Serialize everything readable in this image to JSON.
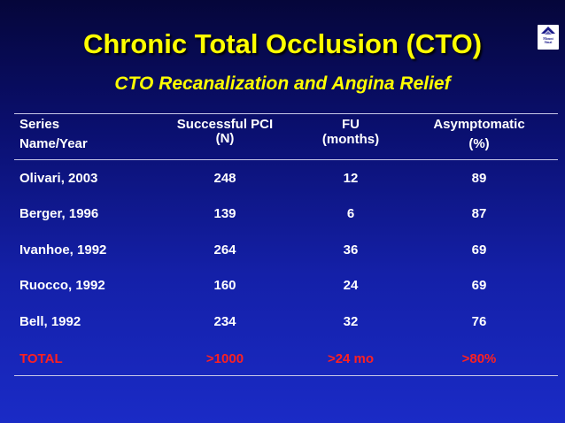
{
  "slide": {
    "title": "Chronic Total Occlusion (CTO)",
    "subtitle": "CTO Recanalization and Angina Relief",
    "logo": {
      "icon": "mountain-logo-icon",
      "lines": [
        "Mount",
        "Sinai"
      ]
    }
  },
  "table": {
    "headers": {
      "series": [
        "Series",
        "Name/Year"
      ],
      "pci": [
        "Successful PCI",
        "(N)"
      ],
      "fu": [
        "FU",
        "(months)"
      ],
      "asym": [
        "Asymptomatic",
        "(%)"
      ]
    },
    "rows": [
      {
        "series": "Olivari, 2003",
        "pci": "248",
        "fu": "12",
        "asym": "89"
      },
      {
        "series": "Berger, 1996",
        "pci": "139",
        "fu": "6",
        "asym": "87"
      },
      {
        "series": "Ivanhoe, 1992",
        "pci": "264",
        "fu": "36",
        "asym": "69"
      },
      {
        "series": "Ruocco, 1992",
        "pci": "160",
        "fu": "24",
        "asym": "69"
      },
      {
        "series": "Bell, 1992",
        "pci": "234",
        "fu": "32",
        "asym": "76"
      }
    ],
    "total": {
      "series": "TOTAL",
      "pci": ">1000",
      "fu": ">24 mo",
      "asym": ">80%"
    }
  },
  "colors": {
    "title": "#ffff00",
    "text": "#ffffff",
    "total": "#ff2020",
    "background": "#1420a8"
  }
}
